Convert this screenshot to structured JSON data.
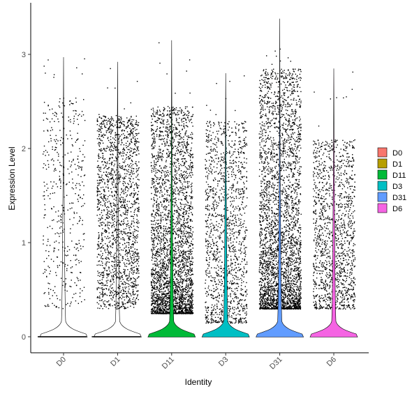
{
  "chart_data": {
    "type": "violin",
    "xlabel": "Identity",
    "ylabel": "Expression Level",
    "ylim": [
      -0.18,
      3.5
    ],
    "yticks": [
      0,
      1,
      2,
      3
    ],
    "categories": [
      "D0",
      "D1",
      "D11",
      "D3",
      "D31",
      "D6"
    ],
    "legend": {
      "position": "right",
      "entries": [
        "D0",
        "D1",
        "D11",
        "D3",
        "D31",
        "D6"
      ]
    },
    "grid": false,
    "series": [
      {
        "name": "D0",
        "color": "#F8766D",
        "max": 2.97,
        "frac_zero": 0.92,
        "nonzero_range": [
          0.3,
          2.55
        ],
        "n_points": 450
      },
      {
        "name": "D1",
        "color": "#B79F00",
        "max": 2.92,
        "frac_zero": 0.85,
        "nonzero_range": [
          0.3,
          2.35
        ],
        "n_points": 1800
      },
      {
        "name": "D11",
        "color": "#00BA38",
        "max": 3.15,
        "frac_zero": 0.55,
        "nonzero_range": [
          0.25,
          2.45
        ],
        "n_points": 3200
      },
      {
        "name": "D3",
        "color": "#00BFC4",
        "max": 2.8,
        "frac_zero": 0.8,
        "nonzero_range": [
          0.15,
          2.3
        ],
        "n_points": 1400
      },
      {
        "name": "D31",
        "color": "#619CFF",
        "max": 3.38,
        "frac_zero": 0.6,
        "nonzero_range": [
          0.3,
          2.85
        ],
        "n_points": 3300
      },
      {
        "name": "D6",
        "color": "#F564E3",
        "max": 2.85,
        "frac_zero": 0.72,
        "nonzero_range": [
          0.3,
          2.1
        ],
        "n_points": 1400
      }
    ]
  }
}
